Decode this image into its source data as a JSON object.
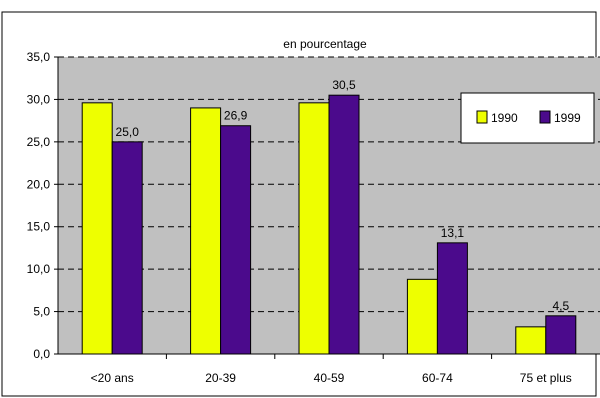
{
  "chart_data": {
    "type": "bar",
    "title": "en pourcentage",
    "categories": [
      "<20 ans",
      "20-39",
      "40-59",
      "60-74",
      "75 et plus"
    ],
    "series": [
      {
        "name": "1990",
        "color": "#eeff00",
        "values": [
          29.6,
          29.0,
          29.6,
          8.8,
          3.2
        ],
        "labels": [
          "",
          "",
          "",
          "",
          ""
        ]
      },
      {
        "name": "1999",
        "color": "#4b0a8c",
        "values": [
          25.0,
          26.9,
          30.5,
          13.1,
          4.5
        ],
        "labels": [
          "25,0",
          "26,9",
          "30,5",
          "13,1",
          "4,5"
        ]
      }
    ],
    "ylim": [
      0,
      35
    ],
    "yticks": [
      "0,0",
      "5,0",
      "10,0",
      "15,0",
      "20,0",
      "25,0",
      "30,0",
      "35,0"
    ],
    "grid": true,
    "legend_position": "right",
    "plot_background": "#c0c0c0"
  }
}
